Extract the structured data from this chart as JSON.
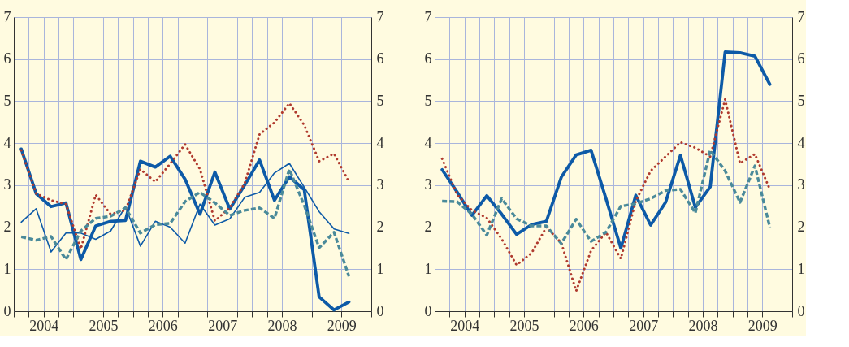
{
  "chart_data": [
    {
      "type": "line",
      "x": [
        2004.125,
        2004.375,
        2004.625,
        2004.875,
        2005.125,
        2005.375,
        2005.625,
        2005.875,
        2006.125,
        2006.375,
        2006.625,
        2006.875,
        2007.125,
        2007.375,
        2007.625,
        2007.875,
        2008.125,
        2008.375,
        2008.625,
        2008.875,
        2009.125,
        2009.375,
        2009.625
      ],
      "xlim": [
        2004,
        2010
      ],
      "xticks": [
        {
          "value": 2004,
          "label": null
        },
        {
          "value": 2004.25,
          "label": null
        },
        {
          "value": 2004.5,
          "label": "2004"
        },
        {
          "value": 2004.75,
          "label": null
        },
        {
          "value": 2005,
          "label": null
        },
        {
          "value": 2005.25,
          "label": null
        },
        {
          "value": 2005.5,
          "label": "2005"
        },
        {
          "value": 2005.75,
          "label": null
        },
        {
          "value": 2006,
          "label": null
        },
        {
          "value": 2006.25,
          "label": null
        },
        {
          "value": 2006.5,
          "label": "2006"
        },
        {
          "value": 2006.75,
          "label": null
        },
        {
          "value": 2007,
          "label": null
        },
        {
          "value": 2007.25,
          "label": null
        },
        {
          "value": 2007.5,
          "label": "2007"
        },
        {
          "value": 2007.75,
          "label": null
        },
        {
          "value": 2008,
          "label": null
        },
        {
          "value": 2008.25,
          "label": null
        },
        {
          "value": 2008.5,
          "label": "2008"
        },
        {
          "value": 2008.75,
          "label": null
        },
        {
          "value": 2009,
          "label": null
        },
        {
          "value": 2009.25,
          "label": null
        },
        {
          "value": 2009.5,
          "label": "2009"
        },
        {
          "value": 2009.75,
          "label": null
        },
        {
          "value": 2010,
          "label": null
        }
      ],
      "ylim": [
        0,
        7
      ],
      "yticks": [
        0,
        1,
        2,
        3,
        4,
        5,
        6,
        7
      ],
      "y2lim": [
        0,
        7
      ],
      "y2ticks": [
        0,
        1,
        2,
        3,
        4,
        5,
        6,
        7
      ],
      "grid": true,
      "series": [
        {
          "color": "#0d5aa7",
          "line_style": "solid",
          "values": [
            3.86,
            2.8,
            2.49,
            2.58,
            1.23,
            2.03,
            2.14,
            2.16,
            3.57,
            3.43,
            3.69,
            3.14,
            2.31,
            3.31,
            2.43,
            3.0,
            3.6,
            2.64,
            3.2,
            2.89,
            0.34,
            0.03,
            0.22
          ]
        },
        {
          "color": "#0d5aa7",
          "line_style": "solid",
          "values": [
            2.12,
            2.44,
            1.41,
            1.86,
            1.86,
            1.71,
            1.91,
            2.49,
            1.55,
            2.14,
            2.0,
            1.62,
            2.55,
            2.05,
            2.2,
            2.71,
            2.83,
            3.29,
            3.52,
            2.95,
            2.37,
            1.96,
            1.85
          ]
        },
        {
          "color": "#b03a2e",
          "line_style": "dotted",
          "values": [
            3.83,
            2.8,
            2.64,
            2.55,
            1.48,
            2.77,
            2.31,
            2.4,
            3.38,
            3.08,
            3.51,
            3.97,
            3.38,
            2.15,
            2.46,
            3.04,
            4.21,
            4.49,
            4.95,
            4.43,
            3.57,
            3.75,
            3.08
          ]
        },
        {
          "color": "#4a8a9a",
          "line_style": "dashed",
          "values": [
            1.77,
            1.69,
            1.78,
            1.23,
            1.91,
            2.21,
            2.26,
            2.46,
            1.86,
            2.06,
            2.09,
            2.61,
            2.83,
            2.58,
            2.28,
            2.4,
            2.46,
            2.21,
            3.38,
            2.52,
            1.51,
            1.88,
            0.83
          ]
        }
      ]
    },
    {
      "type": "line",
      "x": [
        2004.125,
        2004.375,
        2004.625,
        2004.875,
        2005.125,
        2005.375,
        2005.625,
        2005.875,
        2006.125,
        2006.375,
        2006.625,
        2006.875,
        2007.125,
        2007.375,
        2007.625,
        2007.875,
        2008.125,
        2008.375,
        2008.625,
        2008.875,
        2009.125,
        2009.375,
        2009.625
      ],
      "xlim": [
        2004,
        2010
      ],
      "xticks": [
        {
          "value": 2004,
          "label": null
        },
        {
          "value": 2004.25,
          "label": null
        },
        {
          "value": 2004.5,
          "label": "2004"
        },
        {
          "value": 2004.75,
          "label": null
        },
        {
          "value": 2005,
          "label": null
        },
        {
          "value": 2005.25,
          "label": null
        },
        {
          "value": 2005.5,
          "label": "2005"
        },
        {
          "value": 2005.75,
          "label": null
        },
        {
          "value": 2006,
          "label": null
        },
        {
          "value": 2006.25,
          "label": null
        },
        {
          "value": 2006.5,
          "label": "2006"
        },
        {
          "value": 2006.75,
          "label": null
        },
        {
          "value": 2007,
          "label": null
        },
        {
          "value": 2007.25,
          "label": null
        },
        {
          "value": 2007.5,
          "label": "2007"
        },
        {
          "value": 2007.75,
          "label": null
        },
        {
          "value": 2008,
          "label": null
        },
        {
          "value": 2008.25,
          "label": null
        },
        {
          "value": 2008.5,
          "label": "2008"
        },
        {
          "value": 2008.75,
          "label": null
        },
        {
          "value": 2009,
          "label": null
        },
        {
          "value": 2009.25,
          "label": null
        },
        {
          "value": 2009.5,
          "label": "2009"
        },
        {
          "value": 2009.75,
          "label": null
        },
        {
          "value": 2010,
          "label": null
        }
      ],
      "ylim": [
        0,
        7
      ],
      "yticks": [
        0,
        1,
        2,
        3,
        4,
        5,
        6,
        7
      ],
      "y2lim": [
        0,
        7
      ],
      "y2ticks": [
        0,
        1,
        2,
        3,
        4,
        5,
        6,
        7
      ],
      "grid": true,
      "series": [
        {
          "color": "#0d5aa7",
          "line_style": "solid",
          "values": [
            3.37,
            2.84,
            2.28,
            2.75,
            2.31,
            1.83,
            2.06,
            2.14,
            3.19,
            3.72,
            3.83,
            2.68,
            1.5,
            2.76,
            2.05,
            2.59,
            3.71,
            2.47,
            2.96,
            6.17,
            6.15,
            6.07,
            5.4
          ]
        },
        {
          "color": "#b03a2e",
          "line_style": "dotted",
          "values": [
            3.63,
            2.78,
            2.4,
            2.22,
            1.72,
            1.1,
            1.38,
            2.0,
            1.63,
            0.48,
            1.44,
            1.88,
            1.25,
            2.62,
            3.34,
            3.68,
            4.02,
            3.89,
            3.68,
            5.04,
            3.52,
            3.74,
            2.9
          ]
        },
        {
          "color": "#4a8a9a",
          "line_style": "dashed",
          "values": [
            2.62,
            2.61,
            2.31,
            1.81,
            2.68,
            2.2,
            2.03,
            2.03,
            1.61,
            2.19,
            1.66,
            1.88,
            2.5,
            2.56,
            2.68,
            2.87,
            2.9,
            2.34,
            3.83,
            3.34,
            2.59,
            3.46,
            2.0
          ]
        }
      ]
    }
  ]
}
